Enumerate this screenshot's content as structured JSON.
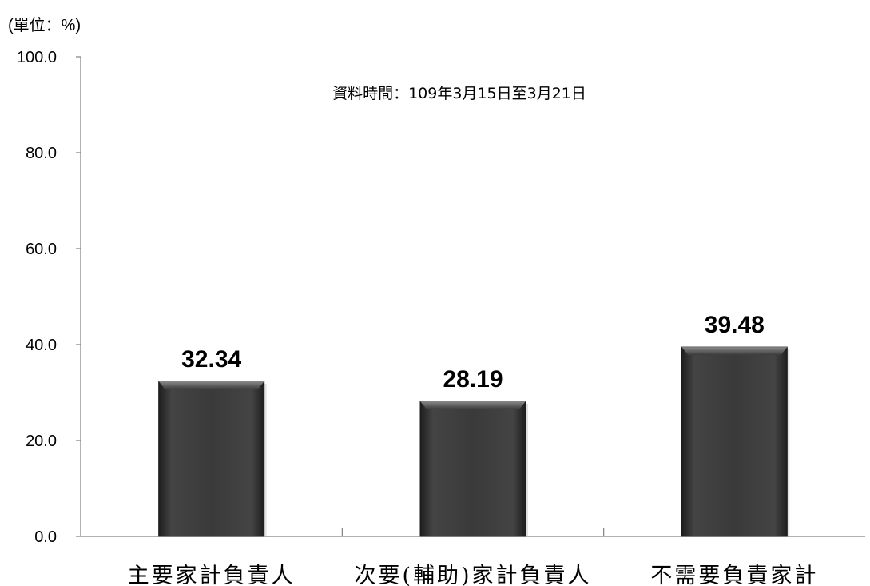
{
  "chart_data": {
    "type": "bar",
    "unit_label": "(單位：%)",
    "annotation": "資料時間：109年3月15日至3月21日",
    "categories": [
      "主要家計負責人",
      "次要(輔助)家計負責人",
      "不需要負責家計"
    ],
    "values": [
      32.34,
      28.19,
      39.48
    ],
    "data_labels": [
      "32.34",
      "28.19",
      "39.48"
    ],
    "ylim": [
      0,
      100
    ],
    "yticks": [
      0,
      20,
      40,
      60,
      80,
      100
    ],
    "ytick_labels": [
      "0.0",
      "20.0",
      "40.0",
      "60.0",
      "80.0",
      "100.0"
    ],
    "bar_color": "#3a3a3a",
    "grid": false,
    "legend": "none"
  }
}
